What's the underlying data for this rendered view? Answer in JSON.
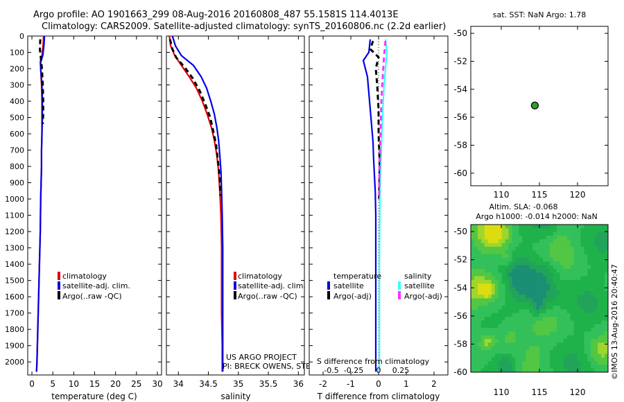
{
  "header": {
    "line1": "Argo profile: AO 1901663_299 08-Aug-2016 20160808_487 55.1581S 114.4013E",
    "line2": "Climatology: CARS2009. Satellite-adjusted climatology: synTS_20160806.nc (2.2d earlier)"
  },
  "colors": {
    "climatology": "#e00000",
    "satellite": "#0000e6",
    "argo": "#000000",
    "sal_satellite": "#33ffff",
    "sal_argo": "#ff33ff",
    "dot_fill": "#2aa02a"
  },
  "chart_data": [
    {
      "id": "temperature",
      "type": "line",
      "xlabel": "temperature (deg C)",
      "ylabel": "",
      "xlim": [
        -1,
        31
      ],
      "ylim": [
        2080,
        0
      ],
      "xticks": [
        0,
        5,
        10,
        15,
        20,
        25,
        30
      ],
      "yticks": [
        0,
        100,
        200,
        300,
        400,
        500,
        600,
        700,
        800,
        900,
        1000,
        1100,
        1200,
        1300,
        1400,
        1500,
        1600,
        1700,
        1800,
        1900,
        2000
      ],
      "legend": [
        "climatology",
        "satellite-adj. clim.",
        "Argo(..raw -QC)"
      ],
      "series": [
        {
          "name": "climatology",
          "style": "solid",
          "color": "#e00000",
          "x": [
            2.8,
            2.7,
            2.4,
            2.0,
            2.1,
            2.3,
            2.4,
            2.4,
            2.4,
            2.3,
            2.3,
            2.2,
            2.1,
            2.0,
            1.9,
            1.8,
            1.6,
            1.5,
            1.4,
            1.3,
            1.2,
            1.1
          ],
          "y": [
            0,
            50,
            120,
            160,
            200,
            300,
            400,
            500,
            600,
            700,
            800,
            900,
            1000,
            1200,
            1300,
            1400,
            1600,
            1700,
            1800,
            1900,
            2000,
            2060
          ]
        },
        {
          "name": "satellite-adj. clim.",
          "style": "solid",
          "color": "#0000e6",
          "x": [
            3.0,
            2.9,
            2.6,
            2.1,
            2.1,
            2.4,
            2.5,
            2.5,
            2.4,
            2.3,
            2.3,
            2.2,
            2.1,
            2.0,
            1.9,
            1.8,
            1.6,
            1.5,
            1.4,
            1.3,
            1.2,
            1.1
          ],
          "y": [
            0,
            50,
            120,
            160,
            200,
            300,
            400,
            500,
            600,
            700,
            800,
            900,
            1000,
            1200,
            1300,
            1400,
            1600,
            1700,
            1800,
            1900,
            2000,
            2060
          ]
        },
        {
          "name": "Argo(..raw -QC)",
          "style": "dashed",
          "color": "#000000",
          "x": [
            2.0,
            1.9,
            2.2,
            2.4,
            2.6,
            2.7,
            2.7,
            2.6
          ],
          "y": [
            20,
            80,
            150,
            200,
            300,
            400,
            480,
            540
          ]
        }
      ]
    },
    {
      "id": "salinity",
      "type": "line",
      "xlabel": "salinity",
      "xlim": [
        33.8,
        36.1
      ],
      "ylim": [
        2080,
        0
      ],
      "xticks": [
        34,
        34.5,
        35,
        35.5,
        36
      ],
      "legend": [
        "climatology",
        "satellite-adj. clim.",
        "Argo(..raw -QC)"
      ],
      "annotation": [
        "US ARGO PROJECT",
        "PI: BRECK OWENS, STEVE JAYNE, P.E. ROBBINS"
      ],
      "series": [
        {
          "name": "climatology",
          "style": "solid",
          "color": "#e00000",
          "x": [
            33.85,
            33.87,
            33.94,
            34.05,
            34.18,
            34.3,
            34.4,
            34.48,
            34.55,
            34.6,
            34.64,
            34.67,
            34.69,
            34.71,
            34.72,
            34.72,
            34.72,
            34.73,
            34.73
          ],
          "y": [
            0,
            60,
            120,
            180,
            250,
            320,
            400,
            480,
            560,
            640,
            730,
            830,
            950,
            1100,
            1300,
            1500,
            1700,
            1900,
            2060
          ]
        },
        {
          "name": "satellite-adj. clim.",
          "style": "solid",
          "color": "#0000e6",
          "x": [
            33.9,
            33.95,
            34.05,
            34.25,
            34.38,
            34.47,
            34.54,
            34.6,
            34.64,
            34.67,
            34.69,
            34.71,
            34.72,
            34.73,
            34.74,
            34.74,
            34.74,
            34.74
          ],
          "y": [
            0,
            60,
            120,
            180,
            250,
            320,
            400,
            480,
            560,
            640,
            730,
            830,
            950,
            1100,
            1300,
            1500,
            1700,
            2060
          ]
        },
        {
          "name": "Argo(..raw -QC)",
          "style": "dashed",
          "color": "#000000",
          "x": [
            33.86,
            33.9,
            33.96,
            34.1,
            34.24,
            34.36,
            34.45,
            34.53,
            34.58,
            34.63,
            34.66,
            34.69,
            34.7
          ],
          "y": [
            20,
            80,
            130,
            190,
            260,
            340,
            420,
            500,
            580,
            670,
            770,
            880,
            980
          ]
        }
      ]
    },
    {
      "id": "difference",
      "type": "line",
      "xlabel": "T difference from climatology",
      "top_label": "S difference from climatology",
      "xlim": [
        -2.5,
        2.5
      ],
      "ylim": [
        2080,
        0
      ],
      "xticks": [
        -2,
        -1,
        0,
        1,
        2
      ],
      "top_xticks": [
        "-0.5",
        "-0.25",
        "0",
        "0.25"
      ],
      "legend_headers": [
        "temperature",
        "salinity"
      ],
      "legend": [
        "satellite",
        "Argo(-adj)",
        "satellite",
        "Argo(-adj)"
      ],
      "series": [
        {
          "name": "satellite",
          "group": "temperature",
          "style": "solid",
          "color": "#0000e6",
          "x": [
            -0.3,
            -0.35,
            -0.55,
            -0.4,
            -0.35,
            -0.3,
            -0.25,
            -0.2,
            -0.18,
            -0.15,
            -0.12,
            -0.1,
            -0.1,
            -0.1,
            -0.1,
            -0.1,
            -0.1
          ],
          "y": [
            20,
            100,
            150,
            250,
            350,
            450,
            550,
            650,
            750,
            850,
            950,
            1100,
            1300,
            1500,
            1700,
            1900,
            2060
          ]
        },
        {
          "name": "Argo(-adj)",
          "group": "temperature",
          "style": "dashed",
          "color": "#000000",
          "x": [
            -0.2,
            -0.3,
            0.0,
            -0.1,
            -0.05,
            0.0,
            0.0,
            0.05,
            0.02
          ],
          "y": [
            30,
            80,
            130,
            200,
            300,
            450,
            600,
            800,
            1000
          ]
        },
        {
          "name": "satellite",
          "group": "salinity",
          "style": "solid",
          "color": "#33ffff",
          "x": [
            0.25,
            0.3,
            0.25,
            0.2,
            0.17,
            0.14,
            0.12,
            0.1,
            0.08,
            0.06,
            0.05,
            0.04,
            0.03,
            0.03,
            0.03,
            0.03
          ],
          "y": [
            20,
            100,
            200,
            300,
            400,
            500,
            600,
            700,
            800,
            900,
            1000,
            1200,
            1400,
            1600,
            1800,
            2060
          ]
        },
        {
          "name": "Argo(-adj)",
          "group": "salinity",
          "style": "dashed",
          "color": "#ff33ff",
          "x": [
            0.25,
            0.2,
            0.15,
            0.1,
            0.08,
            0.05,
            0.03,
            0.02
          ],
          "y": [
            30,
            120,
            250,
            400,
            550,
            700,
            850,
            1000
          ]
        }
      ]
    },
    {
      "id": "map",
      "type": "scatter",
      "title": "sat. SST: NaN Argo: 1.78",
      "xlim": [
        106,
        124
      ],
      "ylim": [
        -60.9,
        -49.5
      ],
      "xticks": [
        110,
        115,
        120
      ],
      "yticks": [
        -50,
        -52,
        -54,
        -56,
        -58,
        -60
      ],
      "points": [
        {
          "x": 114.4,
          "y": -55.16
        }
      ]
    },
    {
      "id": "sla",
      "type": "heatmap",
      "title_lines": [
        "Altim. SLA: -0.068",
        "Argo h1000: -0.014 h2000: NaN"
      ],
      "xlim": [
        106,
        124
      ],
      "ylim": [
        -60,
        -49.5
      ],
      "xticks": [
        110,
        115,
        120
      ],
      "yticks": [
        -50,
        -52,
        -54,
        -56,
        -58,
        -60
      ],
      "side_label": "©IMOS 13-Aug-2016 20:40:47",
      "palette": [
        "#1a8f74",
        "#22a35a",
        "#1fb24a",
        "#33c05a",
        "#52c744",
        "#9ed62c",
        "#dcdd10"
      ]
    }
  ]
}
